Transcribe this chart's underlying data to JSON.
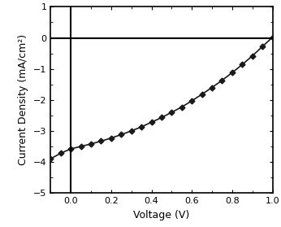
{
  "title": "",
  "xlabel": "Voltage (V)",
  "ylabel": "Current Density (mA/cm²)",
  "xlim": [
    -0.1,
    1.0
  ],
  "ylim": [
    -5,
    1
  ],
  "xticks": [
    0.0,
    0.2,
    0.4,
    0.6,
    0.8,
    1.0
  ],
  "yticks": [
    -5,
    -4,
    -3,
    -2,
    -1,
    0,
    1
  ],
  "line_color": "#1a1a1a",
  "marker": "D",
  "marker_size": 3.5,
  "line_width": 1.2,
  "x_data": [
    -0.1,
    -0.05,
    0.0,
    0.05,
    0.1,
    0.15,
    0.2,
    0.25,
    0.3,
    0.35,
    0.4,
    0.45,
    0.5,
    0.55,
    0.6,
    0.65,
    0.7,
    0.75,
    0.8,
    0.85,
    0.9,
    0.95,
    1.0
  ],
  "y_data": [
    -3.9,
    -3.72,
    -3.58,
    -3.5,
    -3.42,
    -3.33,
    -3.23,
    -3.12,
    -3.0,
    -2.87,
    -2.72,
    -2.57,
    -2.4,
    -2.23,
    -2.03,
    -1.82,
    -1.6,
    -1.37,
    -1.12,
    -0.86,
    -0.58,
    -0.28,
    0.02
  ],
  "vline_x": 0.0,
  "hline_y": 0.0,
  "background_color": "#ffffff",
  "axvline_color": "#000000",
  "axhline_color": "#000000",
  "xlabel_fontsize": 9,
  "ylabel_fontsize": 9,
  "tick_labelsize": 8
}
